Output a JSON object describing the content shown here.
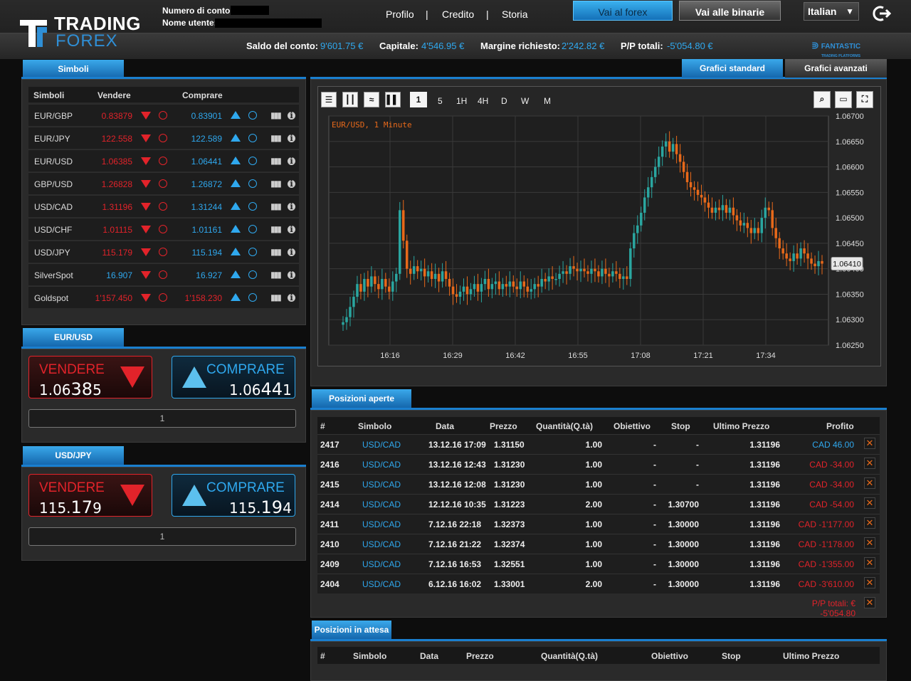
{
  "header": {
    "logo_line1": "TRADING",
    "logo_line2": "FOREX",
    "account_number_label": "Numero di conto:",
    "username_label": "Nome utente:",
    "nav": [
      "Profilo",
      "Credito",
      "Storia"
    ],
    "separator": "|",
    "btn_forex": "Vai al forex",
    "btn_binary": "Vai alle binarie",
    "language": "Italian",
    "brand_badge_line1": "FANTASTIC",
    "brand_badge_line2": "TRADING PLATFORMS"
  },
  "balances": {
    "saldo_label": "Saldo del conto:",
    "saldo_value": "9'601.75 €",
    "capitale_label": "Capitale:",
    "capitale_value": "4'546.95 €",
    "margine_label": "Margine richiesto:",
    "margine_value": "2'242.82 €",
    "pp_label": "P/P totali:",
    "pp_value": "-5'054.80 €"
  },
  "symbols_panel": {
    "tab": "Simboli",
    "headers": [
      "Simboli",
      "Vendere",
      "Comprare"
    ],
    "rows": [
      {
        "symbol": "EUR/GBP",
        "sell": "0.83879",
        "buy": "0.83901",
        "sell_color": "red",
        "buy_color": "blue"
      },
      {
        "symbol": "EUR/JPY",
        "sell": "122.558",
        "buy": "122.589",
        "sell_color": "red",
        "buy_color": "blue"
      },
      {
        "symbol": "EUR/USD",
        "sell": "1.06385",
        "buy": "1.06441",
        "sell_color": "red",
        "buy_color": "blue"
      },
      {
        "symbol": "GBP/USD",
        "sell": "1.26828",
        "buy": "1.26872",
        "sell_color": "red",
        "buy_color": "blue"
      },
      {
        "symbol": "USD/CAD",
        "sell": "1.31196",
        "buy": "1.31244",
        "sell_color": "red",
        "buy_color": "blue"
      },
      {
        "symbol": "USD/CHF",
        "sell": "1.01115",
        "buy": "1.01161",
        "sell_color": "red",
        "buy_color": "blue"
      },
      {
        "symbol": "USD/JPY",
        "sell": "115.179",
        "buy": "115.194",
        "sell_color": "red",
        "buy_color": "blue"
      },
      {
        "symbol": "SilverSpot",
        "sell": "16.907",
        "buy": "16.927",
        "sell_color": "blue",
        "buy_color": "blue"
      },
      {
        "symbol": "Goldspot",
        "sell": "1'157.450",
        "buy": "1'158.230",
        "sell_color": "red",
        "buy_color": "red"
      }
    ],
    "icon_names": [
      "sell-arrow-icon",
      "sell-timer-icon",
      "buy-arrow-icon",
      "buy-timer-icon",
      "bar-chart-icon",
      "info-icon"
    ]
  },
  "trade_widgets": [
    {
      "tab": "EUR/USD",
      "sell_label": "VENDERE",
      "sell_small": "1.06",
      "sell_big": "38",
      "sell_end": "5",
      "buy_label": "COMPRARE",
      "buy_small": "1.06",
      "buy_big": "44",
      "buy_end": "1",
      "quantity": "1"
    },
    {
      "tab": "USD/JPY",
      "sell_label": "VENDERE",
      "sell_small": "115.",
      "sell_big": "17",
      "sell_end": "9",
      "buy_label": "COMPRARE",
      "buy_small": "115.",
      "buy_big": "19",
      "buy_end": "4",
      "quantity": "1"
    }
  ],
  "chart_tabs": {
    "standard": "Grafici standard",
    "advanced": "Grafici avanzati"
  },
  "chart_toolbar": {
    "tools": [
      "list-icon",
      "candles-icon",
      "compare-icon",
      "bars-icon"
    ],
    "timeframes": [
      "1",
      "5",
      "1H",
      "4H",
      "D",
      "W",
      "M"
    ],
    "selected_timeframe": "1",
    "right_tools": [
      "search-icon",
      "print-icon",
      "fullscreen-icon"
    ]
  },
  "chart_data": {
    "type": "candlestick",
    "title": "EUR/USD, 1 Minute",
    "x_ticks": [
      "16:16",
      "16:29",
      "16:42",
      "16:55",
      "17:08",
      "17:21",
      "17:34"
    ],
    "y_ticks": [
      "1.06700",
      "1.06650",
      "1.06600",
      "1.06550",
      "1.06500",
      "1.06450",
      "1.06400",
      "1.06350",
      "1.06300",
      "1.06250"
    ],
    "ylim": [
      1.0625,
      1.067
    ],
    "current_price": "1.06410",
    "grid": true,
    "colors": {
      "up": "#2aa6a0",
      "down": "#e8691a",
      "background": "#1f1f1f",
      "grid": "#3a3a3a",
      "title": "#e8691a"
    },
    "closes": [
      1.06295,
      1.06305,
      1.06325,
      1.06345,
      1.0637,
      1.06355,
      1.0638,
      1.06365,
      1.06385,
      1.0637,
      1.0636,
      1.0638,
      1.06365,
      1.06355,
      1.06375,
      1.0639,
      1.06515,
      1.06455,
      1.064,
      1.0639,
      1.06405,
      1.06395,
      1.064,
      1.06385,
      1.06395,
      1.0638,
      1.0639,
      1.06375,
      1.06395,
      1.0638,
      1.06365,
      1.0635,
      1.06345,
      1.06355,
      1.06365,
      1.0635,
      1.0636,
      1.0637,
      1.06355,
      1.0637,
      1.0638,
      1.0636,
      1.0637,
      1.06375,
      1.0636,
      1.0637,
      1.06365,
      1.06375,
      1.06365,
      1.0636,
      1.06375,
      1.06365,
      1.06355,
      1.0636,
      1.0637,
      1.06365,
      1.0638,
      1.06375,
      1.06385,
      1.0638,
      1.0638,
      1.0639,
      1.06395,
      1.0639,
      1.06405,
      1.064,
      1.06395,
      1.064,
      1.06395,
      1.0639,
      1.064,
      1.06395,
      1.06385,
      1.064,
      1.0639,
      1.06385,
      1.06395,
      1.0639,
      1.0638,
      1.06385,
      1.0638,
      1.0644,
      1.0647,
      1.06485,
      1.0651,
      1.0654,
      1.0656,
      1.0658,
      1.066,
      1.0662,
      1.0664,
      1.0665,
      1.0663,
      1.06645,
      1.06625,
      1.0661,
      1.0659,
      1.0657,
      1.0656,
      1.06555,
      1.06545,
      1.0654,
      1.0653,
      1.0652,
      1.0651,
      1.0652,
      1.06515,
      1.06525,
      1.0651,
      1.0652,
      1.06505,
      1.06495,
      1.06485,
      1.0649,
      1.0648,
      1.0647,
      1.0648,
      1.0647,
      1.065,
      1.0652,
      1.06515,
      1.0648,
      1.0646,
      1.0644,
      1.0643,
      1.0642,
      1.06415,
      1.0643,
      1.0642,
      1.0644,
      1.0643,
      1.0642,
      1.0641,
      1.06405,
      1.06415,
      1.0641
    ]
  },
  "open_positions": {
    "tab": "Posizioni aperte",
    "headers": [
      "#",
      "Simbolo",
      "Data",
      "Prezzo",
      "Quantità(Q.tà)",
      "Obiettivo",
      "Stop",
      "Ultimo Prezzo",
      "Profito"
    ],
    "rows": [
      {
        "id": "2417",
        "symbol": "USD/CAD",
        "date": "13.12.16 17:09",
        "price": "1.31150",
        "qty": "1.00",
        "target": "-",
        "stop": "-",
        "last": "1.31196",
        "profit": "CAD 46.00",
        "profit_color": "blue"
      },
      {
        "id": "2416",
        "symbol": "USD/CAD",
        "date": "13.12.16 12:43",
        "price": "1.31230",
        "qty": "1.00",
        "target": "-",
        "stop": "-",
        "last": "1.31196",
        "profit": "CAD -34.00",
        "profit_color": "red"
      },
      {
        "id": "2415",
        "symbol": "USD/CAD",
        "date": "13.12.16 12:08",
        "price": "1.31230",
        "qty": "1.00",
        "target": "-",
        "stop": "-",
        "last": "1.31196",
        "profit": "CAD -34.00",
        "profit_color": "red"
      },
      {
        "id": "2414",
        "symbol": "USD/CAD",
        "date": "12.12.16 10:35",
        "price": "1.31223",
        "qty": "2.00",
        "target": "-",
        "stop": "1.30700",
        "last": "1.31196",
        "profit": "CAD -54.00",
        "profit_color": "red"
      },
      {
        "id": "2411",
        "symbol": "USD/CAD",
        "date": "7.12.16 22:18",
        "price": "1.32373",
        "qty": "1.00",
        "target": "-",
        "stop": "1.30000",
        "last": "1.31196",
        "profit": "CAD -1'177.00",
        "profit_color": "red"
      },
      {
        "id": "2410",
        "symbol": "USD/CAD",
        "date": "7.12.16 21:22",
        "price": "1.32374",
        "qty": "1.00",
        "target": "-",
        "stop": "1.30000",
        "last": "1.31196",
        "profit": "CAD -1'178.00",
        "profit_color": "red"
      },
      {
        "id": "2409",
        "symbol": "USD/CAD",
        "date": "7.12.16 16:53",
        "price": "1.32551",
        "qty": "1.00",
        "target": "-",
        "stop": "1.30000",
        "last": "1.31196",
        "profit": "CAD -1'355.00",
        "profit_color": "red"
      },
      {
        "id": "2404",
        "symbol": "USD/CAD",
        "date": "6.12.16 16:02",
        "price": "1.33001",
        "qty": "2.00",
        "target": "-",
        "stop": "1.30000",
        "last": "1.31196",
        "profit": "CAD -3'610.00",
        "profit_color": "red"
      }
    ],
    "total": "P/P totali: € -5'054.80",
    "close_glyph": "✕"
  },
  "pending_positions": {
    "tab": "Posizioni in attesa",
    "headers": [
      "#",
      "Simbolo",
      "Data",
      "Prezzo",
      "Quantità(Q.tà)",
      "Obiettivo",
      "Stop",
      "Ultimo Prezzo"
    ]
  }
}
